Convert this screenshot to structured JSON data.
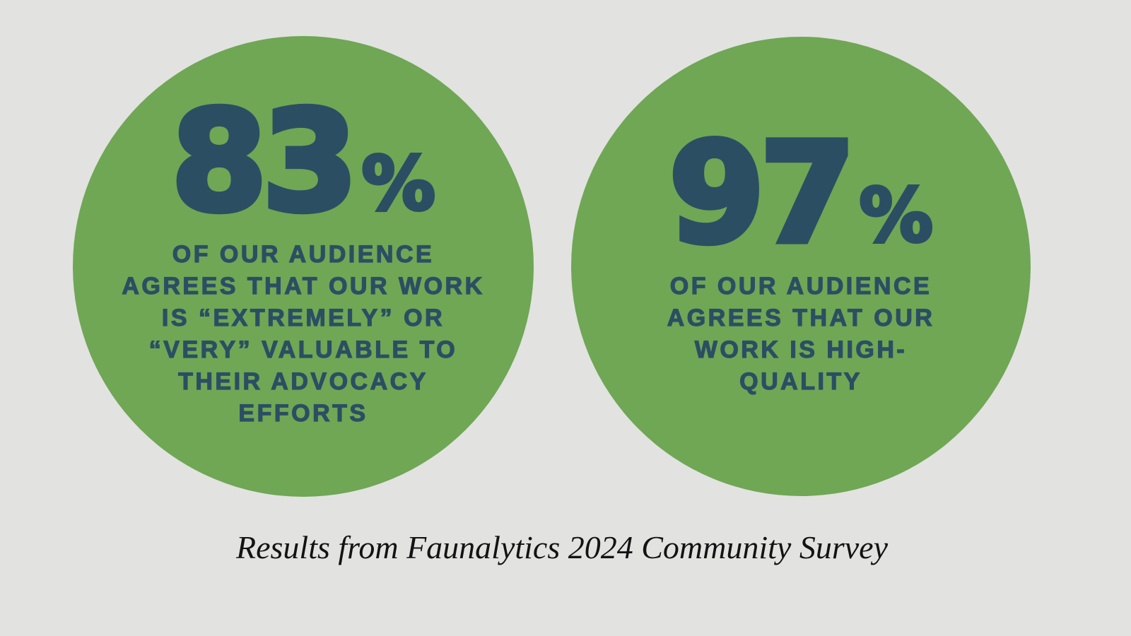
{
  "colors": {
    "page_bg": "#e2e2e0",
    "circle_green": "#6fa755",
    "stat_navy": "#2c4e63",
    "caption_black": "#131313"
  },
  "caption": "Results from Faunalytics 2024 Community Survey",
  "stats": [
    {
      "value": "83",
      "percent_sign": "%",
      "description": "OF OUR AUDIENCE AGREES THAT OUR WORK IS “EXTREMELY” OR “VERY” VALUABLE TO THEIR ADVOCACY EFFORTS",
      "lines": [
        "OF OUR AUDIENCE",
        "AGREES THAT OUR WORK",
        "IS “EXTREMELY” OR",
        "“VERY” VALUABLE TO",
        "THEIR ADVOCACY",
        "EFFORTS"
      ]
    },
    {
      "value": "97",
      "percent_sign": "%",
      "description": "OF OUR AUDIENCE AGREES THAT OUR WORK IS HIGH-QUALITY",
      "lines": [
        "OF OUR AUDIENCE",
        "AGREES THAT OUR",
        "WORK IS HIGH-",
        "QUALITY"
      ]
    }
  ],
  "chart_data": {
    "type": "table",
    "title": "Results from Faunalytics 2024 Community Survey",
    "categories": [
      "Of our audience agrees that our work is “extremely” or “very” valuable to their advocacy efforts",
      "Of our audience agrees that our work is high-quality"
    ],
    "values": [
      83,
      97
    ],
    "unit": "%",
    "layout": "two green circles side by side on light gray background, caption centered below"
  }
}
